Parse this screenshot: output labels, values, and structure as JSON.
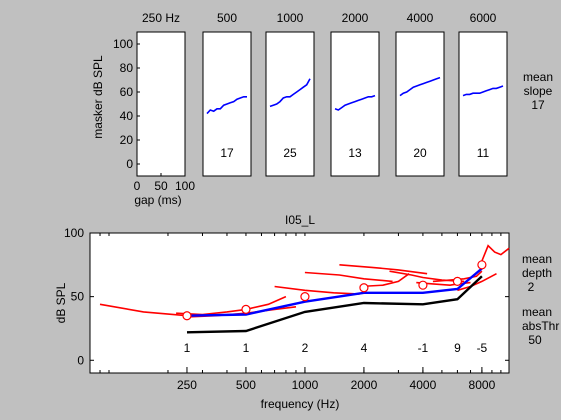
{
  "chart_data": [
    {
      "type": "line",
      "role": "masking-panels",
      "ylabel": "masker dB SPL",
      "xlabel": "gap (ms)",
      "ylim": [
        -10,
        110
      ],
      "yticks": [
        0,
        20,
        40,
        60,
        80,
        100
      ],
      "xlim": [
        0,
        100
      ],
      "xticks": [
        0,
        50,
        100
      ],
      "grid": false,
      "panels": [
        {
          "title": "250 Hz",
          "slope": "",
          "values": []
        },
        {
          "title": "500",
          "slope": "17",
          "values": [
            42,
            45,
            44,
            46,
            46,
            49,
            50,
            51,
            52,
            54,
            55,
            56,
            56
          ]
        },
        {
          "title": "1000",
          "slope": "25",
          "values": [
            48,
            49,
            50,
            52,
            55,
            56,
            56,
            58,
            60,
            62,
            64,
            66,
            71
          ]
        },
        {
          "title": "2000",
          "slope": "13",
          "values": [
            46,
            45,
            47,
            49,
            50,
            51,
            52,
            53,
            54,
            55,
            56,
            56,
            57
          ]
        },
        {
          "title": "4000",
          "slope": "20",
          "values": [
            57,
            59,
            60,
            62,
            64,
            65,
            66,
            67,
            68,
            69,
            70,
            71,
            72
          ]
        },
        {
          "title": "6000",
          "slope": "11",
          "values": [
            57,
            58,
            58,
            59,
            59,
            59,
            60,
            61,
            62,
            63,
            63,
            64,
            65
          ]
        }
      ],
      "side_label": [
        "mean",
        "slope",
        "17"
      ]
    },
    {
      "type": "line",
      "role": "threshold-panel",
      "title": "I05_L",
      "xlabel": "frequency (Hz)",
      "ylabel": "dB SPL",
      "xscale": "log",
      "xlim": [
        80,
        11000
      ],
      "xticks": [
        250,
        500,
        1000,
        2000,
        4000,
        8000
      ],
      "ylim": [
        -10,
        100
      ],
      "yticks": [
        0,
        50,
        100
      ],
      "grid": false,
      "series": [
        {
          "color": "#000000",
          "x": [
            250,
            500,
            1000,
            2000,
            4000,
            6000,
            8000
          ],
          "y": [
            22,
            23,
            38,
            45,
            44,
            48,
            66
          ]
        },
        {
          "color": "#0000ff",
          "x": [
            250,
            500,
            1000,
            2000,
            4000,
            6000,
            8000
          ],
          "y": [
            35,
            36,
            46,
            53,
            53,
            56,
            72
          ]
        },
        {
          "color": "#ff0000",
          "x": [
            90,
            150,
            250
          ],
          "y": [
            44,
            38,
            35
          ]
        },
        {
          "color": "#ff0000",
          "x": [
            220,
            300,
            400,
            500,
            650,
            800
          ],
          "y": [
            37,
            36,
            38,
            40,
            44,
            50
          ]
        },
        {
          "color": "#ff0000",
          "x": [
            250,
            350,
            500,
            700,
            900
          ],
          "y": [
            34,
            35,
            37,
            40,
            42
          ]
        },
        {
          "color": "#ff0000",
          "x": [
            700,
            1000,
            1400,
            1900
          ],
          "y": [
            58,
            55,
            53,
            52
          ]
        },
        {
          "color": "#ff0000",
          "x": [
            1000,
            1500,
            2000,
            2800
          ],
          "y": [
            69,
            67,
            64,
            62
          ]
        },
        {
          "color": "#ff0000",
          "x": [
            1500,
            2200,
            3000,
            4200
          ],
          "y": [
            75,
            73,
            71,
            68
          ]
        },
        {
          "color": "#ff0000",
          "x": [
            1900,
            2500,
            3000,
            3400
          ],
          "y": [
            58,
            59,
            62,
            68
          ]
        },
        {
          "color": "#ff0000",
          "x": [
            2700,
            3500,
            4000,
            5000,
            6500
          ],
          "y": [
            70,
            67,
            65,
            63,
            62
          ]
        },
        {
          "color": "#ff0000",
          "x": [
            3700,
            4500,
            5500,
            6000,
            7000
          ],
          "y": [
            61,
            60,
            59,
            60,
            61
          ]
        },
        {
          "color": "#ff0000",
          "x": [
            4500,
            5500,
            6500,
            7500,
            8000
          ],
          "y": [
            62,
            63,
            64,
            66,
            70
          ]
        },
        {
          "color": "#ff0000",
          "x": [
            6000,
            7000,
            8000,
            9500
          ],
          "y": [
            55,
            58,
            62,
            68
          ]
        },
        {
          "color": "#ff0000",
          "x": [
            8000,
            8600,
            9300,
            10000,
            11000
          ],
          "y": [
            78,
            90,
            85,
            83,
            88
          ]
        }
      ],
      "markers": {
        "x": [
          250,
          500,
          1000,
          2000,
          4000,
          6000,
          8000
        ],
        "y": [
          35,
          40,
          50,
          57,
          59,
          62,
          75
        ]
      },
      "annotations": {
        "x": [
          250,
          500,
          1000,
          2000,
          4000,
          6000,
          8000
        ],
        "labels": [
          "1",
          "1",
          "2",
          "4",
          "-1",
          "9",
          "-5"
        ]
      },
      "side_labels": {
        "depth": [
          "mean",
          "depth",
          "2"
        ],
        "abs": [
          "mean",
          "absThr",
          "50"
        ]
      }
    }
  ]
}
